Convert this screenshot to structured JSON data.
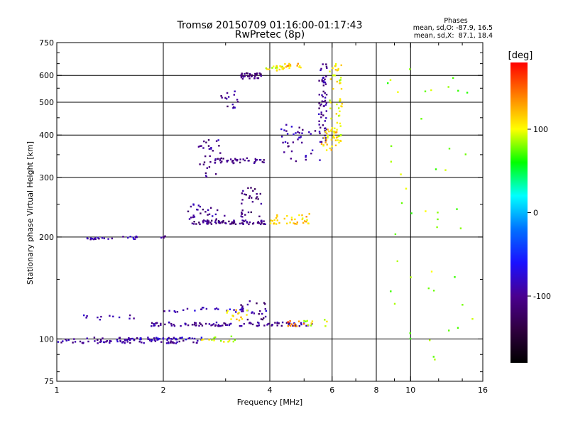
{
  "chart_data": {
    "type": "scatter",
    "title": "Tromsø 20150709 01:16:00-01:17:43",
    "subtitle": "RwPretec (8p)",
    "stats": {
      "heading": "Phases",
      "o_line": "mean, sd,O: -87.9, 16.5",
      "x_line": "mean, sd,X:  87.1, 18.4"
    },
    "xlabel": "Frequency [MHz]",
    "ylabel": "Stationary phase Virtual Height [km]",
    "x_scale": "log",
    "y_scale": "log",
    "xlim": [
      1,
      16
    ],
    "ylim": [
      75,
      750
    ],
    "x_ticks": [
      1,
      2,
      4,
      6,
      8,
      10,
      16
    ],
    "x_tick_labels": [
      "1",
      "2",
      "4",
      "6",
      "8",
      "10",
      "16"
    ],
    "y_ticks": [
      75,
      100,
      200,
      300,
      400,
      500,
      600,
      750
    ],
    "y_tick_labels": [
      "75",
      "100",
      "200",
      "300",
      "400",
      "500",
      "600",
      "750"
    ],
    "grid": true,
    "colorbar": {
      "label": "[deg]",
      "range": [
        -180,
        180
      ],
      "ticks": [
        100,
        0,
        -100
      ],
      "tick_labels": [
        "100",
        "0",
        "-100"
      ],
      "stops": [
        "#000000",
        "#300040",
        "#4a0090",
        "#1a10ff",
        "#0070ff",
        "#00ffff",
        "#00ff00",
        "#ffff00",
        "#ff8000",
        "#ff0000"
      ]
    },
    "echo_tracks": [
      {
        "x_range": [
          1.0,
          2.5
        ],
        "y_range": [
          97,
          101
        ],
        "phase": -95,
        "count": 90
      },
      {
        "x_range": [
          1.6,
          2.6
        ],
        "y_range": [
          99,
          101
        ],
        "phase": -80,
        "count": 25
      },
      {
        "x_range": [
          2.5,
          3.2
        ],
        "y_range": [
          98,
          102
        ],
        "phase": 95,
        "count": 14
      },
      {
        "x_range": [
          1.8,
          5.3
        ],
        "y_range": [
          109,
          112
        ],
        "phase": -100,
        "count": 95
      },
      {
        "x_range": [
          1.15,
          1.7
        ],
        "y_range": [
          114,
          118
        ],
        "phase": -95,
        "count": 12
      },
      {
        "x_range": [
          2.0,
          4.0
        ],
        "y_range": [
          120,
          124
        ],
        "phase": -85,
        "count": 30
      },
      {
        "x_range": [
          3.0,
          3.5
        ],
        "y_range": [
          113,
          122
        ],
        "phase": 110,
        "count": 14
      },
      {
        "x_range": [
          3.3,
          3.9
        ],
        "y_range": [
          112,
          130
        ],
        "phase": -110,
        "count": 18
      },
      {
        "x_range": [
          4.5,
          5.0
        ],
        "y_range": [
          109,
          113
        ],
        "phase": 150,
        "count": 10
      },
      {
        "x_range": [
          5.0,
          5.8
        ],
        "y_range": [
          109,
          114
        ],
        "phase": 95,
        "count": 10
      },
      {
        "x_range": [
          1.15,
          1.45
        ],
        "y_range": [
          196,
          199
        ],
        "phase": -95,
        "count": 15
      },
      {
        "x_range": [
          1.5,
          1.75
        ],
        "y_range": [
          197,
          201
        ],
        "phase": -90,
        "count": 10
      },
      {
        "x_range": [
          1.95,
          2.05
        ],
        "y_range": [
          199,
          202
        ],
        "phase": -100,
        "count": 5
      },
      {
        "x_range": [
          2.4,
          3.9
        ],
        "y_range": [
          218,
          224
        ],
        "phase": -105,
        "count": 80
      },
      {
        "x_range": [
          2.3,
          3.0
        ],
        "y_range": [
          225,
          250
        ],
        "phase": -100,
        "count": 25
      },
      {
        "x_range": [
          3.3,
          3.8
        ],
        "y_range": [
          225,
          280
        ],
        "phase": -110,
        "count": 30
      },
      {
        "x_range": [
          4.0,
          5.2
        ],
        "y_range": [
          218,
          234
        ],
        "phase": 115,
        "count": 35
      },
      {
        "x_range": [
          2.5,
          2.9
        ],
        "y_range": [
          300,
          390
        ],
        "phase": -100,
        "count": 30
      },
      {
        "x_range": [
          2.8,
          3.9
        ],
        "y_range": [
          330,
          342
        ],
        "phase": -105,
        "count": 40
      },
      {
        "x_range": [
          2.9,
          3.3
        ],
        "y_range": [
          480,
          540
        ],
        "phase": -100,
        "count": 15
      },
      {
        "x_range": [
          3.3,
          3.8
        ],
        "y_range": [
          585,
          610
        ],
        "phase": -110,
        "count": 35
      },
      {
        "x_range": [
          3.9,
          4.4
        ],
        "y_range": [
          620,
          640
        ],
        "phase": 100,
        "count": 20
      },
      {
        "x_range": [
          4.4,
          4.9
        ],
        "y_range": [
          630,
          650
        ],
        "phase": 120,
        "count": 15
      },
      {
        "x_range": [
          5.5,
          5.8
        ],
        "y_range": [
          380,
          650
        ],
        "phase": -100,
        "count": 60
      },
      {
        "x_range": [
          5.9,
          6.4
        ],
        "y_range": [
          380,
          650
        ],
        "phase": 100,
        "count": 55
      },
      {
        "x_range": [
          4.3,
          5.6
        ],
        "y_range": [
          330,
          430
        ],
        "phase": -95,
        "count": 40
      },
      {
        "x_range": [
          5.6,
          6.2
        ],
        "y_range": [
          360,
          420
        ],
        "phase": 115,
        "count": 30
      },
      {
        "x_range": [
          8.5,
          15.0
        ],
        "y_range": [
          85,
          650
        ],
        "phase": 80,
        "count": 45
      }
    ]
  }
}
